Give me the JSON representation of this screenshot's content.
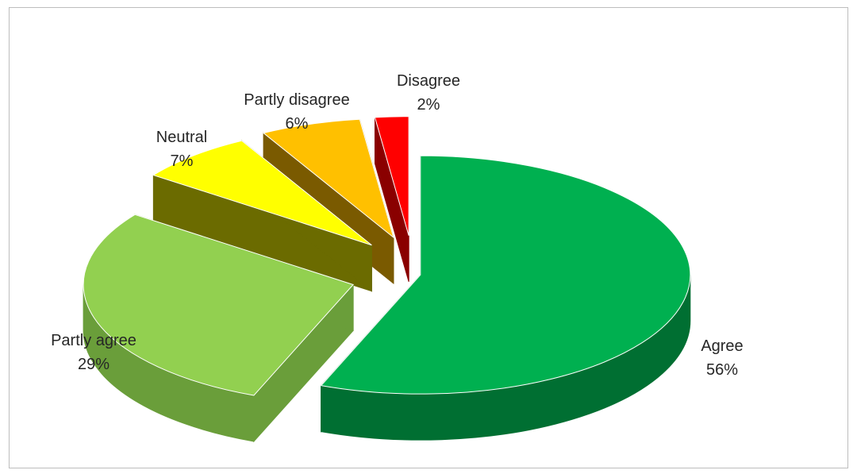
{
  "chart_data": {
    "type": "pie",
    "style": "3d-exploded",
    "title": "",
    "legend": "none",
    "slices": [
      {
        "label": "Agree",
        "value": 56,
        "pct_label": "56%",
        "color": "#00b050",
        "side_color": "#006f32"
      },
      {
        "label": "Partly agree",
        "value": 29,
        "pct_label": "29%",
        "color": "#92d050",
        "side_color": "#6a9e3a"
      },
      {
        "label": "Neutral",
        "value": 7,
        "pct_label": "7%",
        "color": "#ffff00",
        "side_color": "#6b6b00"
      },
      {
        "label": "Partly disagree",
        "value": 6,
        "pct_label": "6%",
        "color": "#ffc000",
        "side_color": "#7a5a00"
      },
      {
        "label": "Disagree",
        "value": 2,
        "pct_label": "2%",
        "color": "#ff0000",
        "side_color": "#8a0000"
      }
    ]
  }
}
